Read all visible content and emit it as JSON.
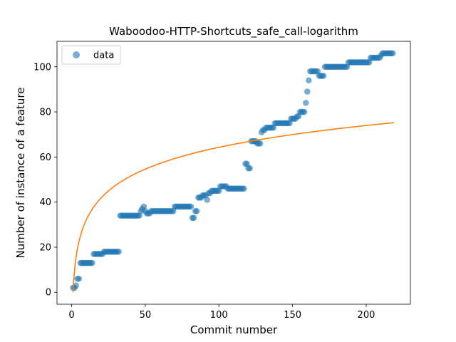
{
  "chart_data": {
    "type": "scatter",
    "title": "Waboodoo-HTTP-Shortcuts_safe_call-logarithm",
    "xlabel": "Commit number",
    "ylabel": "Number of instance of a feature",
    "xlim": [
      -9.9,
      230
    ],
    "ylim": [
      -5.3,
      111.3
    ],
    "xticks": [
      0,
      50,
      100,
      150,
      200
    ],
    "yticks": [
      0,
      20,
      40,
      60,
      80,
      100
    ],
    "grid": false,
    "legend": {
      "position": "top-left",
      "entries": [
        "data"
      ]
    },
    "colors": {
      "data": "#1f77b4",
      "fit": "#ff7f0e"
    },
    "series": [
      {
        "name": "data",
        "kind": "scatter",
        "points": [
          [
            1,
            2
          ],
          [
            2,
            2
          ],
          [
            3,
            3
          ],
          [
            4,
            6
          ],
          [
            5,
            6
          ],
          [
            6,
            13
          ],
          [
            7,
            13
          ],
          [
            8,
            13
          ],
          [
            9,
            13
          ],
          [
            10,
            13
          ],
          [
            11,
            13
          ],
          [
            12,
            13
          ],
          [
            13,
            13
          ],
          [
            14,
            13
          ],
          [
            15,
            17
          ],
          [
            16,
            17
          ],
          [
            17,
            17
          ],
          [
            18,
            17
          ],
          [
            19,
            17
          ],
          [
            20,
            17
          ],
          [
            21,
            17
          ],
          [
            22,
            18
          ],
          [
            23,
            18
          ],
          [
            24,
            18
          ],
          [
            25,
            18
          ],
          [
            26,
            18
          ],
          [
            27,
            18
          ],
          [
            28,
            18
          ],
          [
            29,
            18
          ],
          [
            30,
            18
          ],
          [
            31,
            18
          ],
          [
            32,
            18
          ],
          [
            33,
            34
          ],
          [
            34,
            34
          ],
          [
            35,
            34
          ],
          [
            36,
            34
          ],
          [
            37,
            34
          ],
          [
            38,
            34
          ],
          [
            39,
            34
          ],
          [
            40,
            34
          ],
          [
            41,
            34
          ],
          [
            42,
            34
          ],
          [
            43,
            34
          ],
          [
            44,
            34
          ],
          [
            45,
            34
          ],
          [
            46,
            34
          ],
          [
            47,
            36
          ],
          [
            48,
            37
          ],
          [
            49,
            38
          ],
          [
            50,
            36
          ],
          [
            51,
            35
          ],
          [
            52,
            35
          ],
          [
            53,
            35
          ],
          [
            54,
            36
          ],
          [
            55,
            36
          ],
          [
            56,
            36
          ],
          [
            57,
            36
          ],
          [
            58,
            36
          ],
          [
            59,
            36
          ],
          [
            60,
            36
          ],
          [
            61,
            36
          ],
          [
            62,
            36
          ],
          [
            63,
            36
          ],
          [
            64,
            36
          ],
          [
            65,
            36
          ],
          [
            66,
            36
          ],
          [
            67,
            36
          ],
          [
            68,
            36
          ],
          [
            69,
            36
          ],
          [
            70,
            38
          ],
          [
            71,
            38
          ],
          [
            72,
            38
          ],
          [
            73,
            38
          ],
          [
            74,
            38
          ],
          [
            75,
            38
          ],
          [
            76,
            38
          ],
          [
            77,
            38
          ],
          [
            78,
            38
          ],
          [
            79,
            38
          ],
          [
            80,
            38
          ],
          [
            81,
            38
          ],
          [
            82,
            33
          ],
          [
            83,
            33
          ],
          [
            84,
            36
          ],
          [
            85,
            36
          ],
          [
            86,
            42
          ],
          [
            87,
            42
          ],
          [
            88,
            42
          ],
          [
            89,
            43
          ],
          [
            90,
            43
          ],
          [
            91,
            43
          ],
          [
            92,
            41
          ],
          [
            93,
            44
          ],
          [
            94,
            44
          ],
          [
            95,
            45
          ],
          [
            96,
            45
          ],
          [
            97,
            45
          ],
          [
            98,
            45
          ],
          [
            99,
            45
          ],
          [
            100,
            45
          ],
          [
            101,
            47
          ],
          [
            102,
            47
          ],
          [
            103,
            47
          ],
          [
            104,
            47
          ],
          [
            105,
            47
          ],
          [
            106,
            46
          ],
          [
            107,
            46
          ],
          [
            108,
            46
          ],
          [
            109,
            46
          ],
          [
            110,
            46
          ],
          [
            111,
            46
          ],
          [
            112,
            46
          ],
          [
            113,
            46
          ],
          [
            114,
            46
          ],
          [
            115,
            46
          ],
          [
            116,
            46
          ],
          [
            117,
            46
          ],
          [
            118,
            57
          ],
          [
            119,
            57
          ],
          [
            120,
            55
          ],
          [
            121,
            55
          ],
          [
            122,
            67
          ],
          [
            123,
            67
          ],
          [
            124,
            67
          ],
          [
            125,
            67
          ],
          [
            126,
            66
          ],
          [
            127,
            66
          ],
          [
            128,
            66
          ],
          [
            129,
            71
          ],
          [
            130,
            72
          ],
          [
            131,
            72
          ],
          [
            132,
            73
          ],
          [
            133,
            73
          ],
          [
            134,
            73
          ],
          [
            135,
            73
          ],
          [
            136,
            73
          ],
          [
            137,
            73
          ],
          [
            138,
            75
          ],
          [
            139,
            75
          ],
          [
            140,
            75
          ],
          [
            141,
            75
          ],
          [
            142,
            75
          ],
          [
            143,
            75
          ],
          [
            144,
            75
          ],
          [
            145,
            75
          ],
          [
            146,
            75
          ],
          [
            147,
            75
          ],
          [
            148,
            75
          ],
          [
            149,
            77
          ],
          [
            150,
            77
          ],
          [
            151,
            77
          ],
          [
            152,
            77
          ],
          [
            153,
            78
          ],
          [
            154,
            78
          ],
          [
            155,
            80
          ],
          [
            156,
            80
          ],
          [
            157,
            80
          ],
          [
            158,
            80
          ],
          [
            159,
            84
          ],
          [
            160,
            89
          ],
          [
            161,
            94
          ],
          [
            162,
            98
          ],
          [
            163,
            98
          ],
          [
            164,
            98
          ],
          [
            165,
            98
          ],
          [
            166,
            98
          ],
          [
            167,
            98
          ],
          [
            168,
            96
          ],
          [
            169,
            96
          ],
          [
            170,
            96
          ],
          [
            171,
            96
          ],
          [
            172,
            100
          ],
          [
            173,
            100
          ],
          [
            174,
            100
          ],
          [
            175,
            100
          ],
          [
            176,
            100
          ],
          [
            177,
            100
          ],
          [
            178,
            100
          ],
          [
            179,
            100
          ],
          [
            180,
            100
          ],
          [
            181,
            100
          ],
          [
            182,
            100
          ],
          [
            183,
            100
          ],
          [
            184,
            100
          ],
          [
            185,
            100
          ],
          [
            186,
            100
          ],
          [
            187,
            100
          ],
          [
            188,
            102
          ],
          [
            189,
            102
          ],
          [
            190,
            102
          ],
          [
            191,
            102
          ],
          [
            192,
            102
          ],
          [
            193,
            102
          ],
          [
            194,
            102
          ],
          [
            195,
            102
          ],
          [
            196,
            102
          ],
          [
            197,
            102
          ],
          [
            198,
            102
          ],
          [
            199,
            102
          ],
          [
            200,
            102
          ],
          [
            201,
            102
          ],
          [
            202,
            102
          ],
          [
            203,
            104
          ],
          [
            204,
            104
          ],
          [
            205,
            104
          ],
          [
            206,
            104
          ],
          [
            207,
            104
          ],
          [
            208,
            104
          ],
          [
            209,
            104
          ],
          [
            210,
            105
          ],
          [
            211,
            106
          ],
          [
            212,
            106
          ],
          [
            213,
            106
          ],
          [
            214,
            106
          ],
          [
            215,
            106
          ],
          [
            216,
            106
          ],
          [
            217,
            106
          ],
          [
            218,
            106
          ]
        ]
      },
      {
        "kind": "line",
        "fit": {
          "model": "logarithmic",
          "a": 0,
          "b": 13.96
        },
        "x_range": [
          1,
          219
        ]
      }
    ]
  }
}
